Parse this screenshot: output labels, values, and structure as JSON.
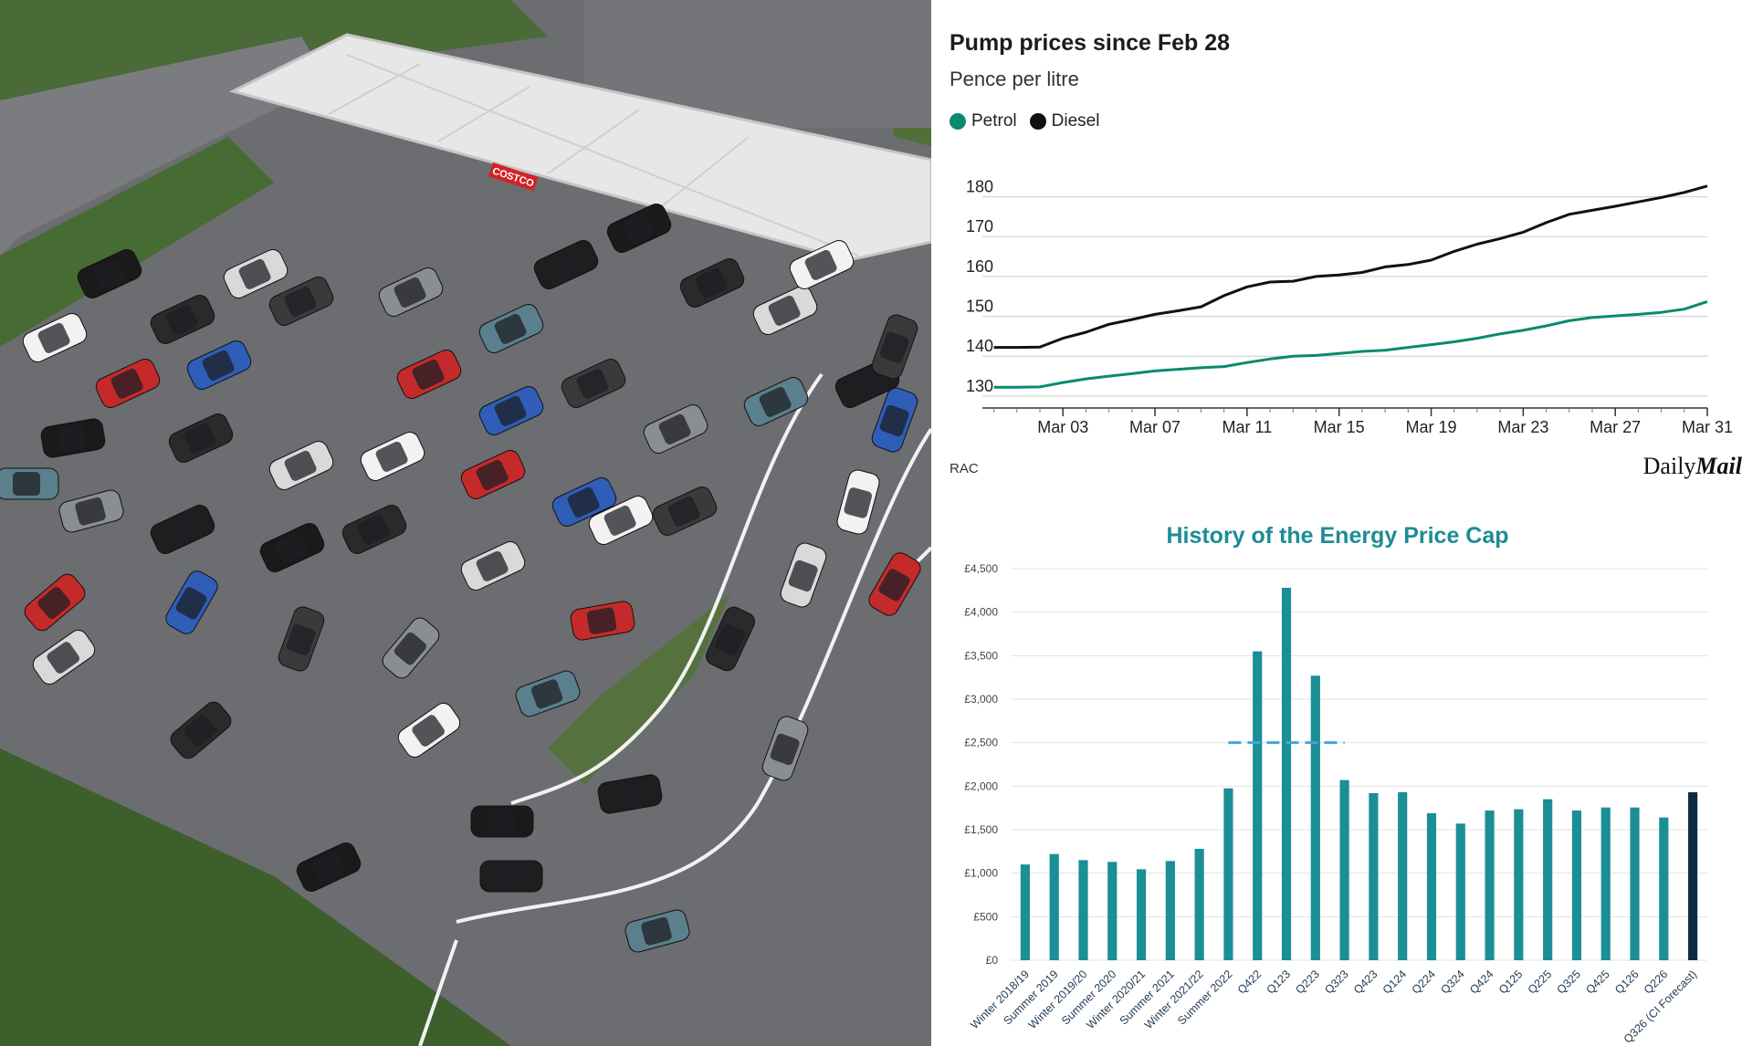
{
  "photo": {
    "alt_label": "Aerial view of queue at petrol station",
    "sign_text": "COSTCO",
    "colors": {
      "tarmac": "#6d6f72",
      "grass": "#3f6b2e",
      "canopy": "#e6e6e6",
      "canopy_edge": "#c9c9c9",
      "sign_red": "#d32226"
    }
  },
  "pump_prices": {
    "title": "Pump prices since Feb 28",
    "subtitle": "Pence per litre",
    "source": "RAC",
    "logo_prefix": "Daily",
    "logo_suffix": "Mail",
    "legend": [
      {
        "name": "Petrol",
        "color": "#0a8a6e"
      },
      {
        "name": "Diesel",
        "color": "#111111"
      }
    ]
  },
  "energy_cap": {
    "title": "History of the Energy Price Cap",
    "title_color": "#1d8c95",
    "bar_color": "#1b8e96",
    "highlight_color": "#0d2b45",
    "dash_color": "#4aa3d8"
  },
  "chart_data": [
    {
      "type": "line",
      "title": "Pump prices since Feb 28",
      "ylabel": "Pence per litre",
      "ylim": [
        127,
        187
      ],
      "yticks": [
        130,
        140,
        150,
        160,
        170,
        180
      ],
      "x_tick_labels": [
        "Mar 03",
        "Mar 07",
        "Mar 11",
        "Mar 15",
        "Mar 19",
        "Mar 23",
        "Mar 27",
        "Mar 31"
      ],
      "x_tick_days": [
        3,
        7,
        11,
        15,
        19,
        23,
        27,
        31
      ],
      "x_start_day": 28,
      "xlim_days": [
        -0.5,
        31
      ],
      "x_day_offset_label": "Feb 28 = day 0",
      "grid": true,
      "legend_position": "top-left",
      "series": [
        {
          "name": "Petrol",
          "color": "#0a8a6e",
          "x": [
            0,
            1,
            2,
            3,
            4,
            5,
            6,
            7,
            8,
            9,
            10,
            11,
            12,
            13,
            14,
            15,
            16,
            17,
            18,
            19,
            20,
            21,
            22,
            23,
            24,
            25,
            26,
            27,
            28,
            29,
            30,
            31
          ],
          "values": [
            132.2,
            132.2,
            132.3,
            133.4,
            134.3,
            135.0,
            135.6,
            136.3,
            136.7,
            137.1,
            137.4,
            138.4,
            139.3,
            140.0,
            140.2,
            140.7,
            141.2,
            141.5,
            142.2,
            142.9,
            143.6,
            144.5,
            145.6,
            146.5,
            147.6,
            148.9,
            149.7,
            150.1,
            150.5,
            151.0,
            151.8,
            153.7
          ]
        },
        {
          "name": "Diesel",
          "color": "#111111",
          "x": [
            0,
            1,
            2,
            3,
            4,
            5,
            6,
            7,
            8,
            9,
            10,
            11,
            12,
            13,
            14,
            15,
            16,
            17,
            18,
            19,
            20,
            21,
            22,
            23,
            24,
            25,
            26,
            27,
            28,
            29,
            30,
            31
          ],
          "values": [
            142.2,
            142.2,
            142.3,
            144.5,
            146.0,
            148.0,
            149.2,
            150.5,
            151.4,
            152.4,
            155.2,
            157.4,
            158.6,
            158.8,
            160.0,
            160.4,
            161.0,
            162.4,
            163.0,
            164.1,
            166.3,
            168.1,
            169.5,
            171.1,
            173.5,
            175.6,
            176.6,
            177.6,
            178.7,
            179.8,
            181.1,
            182.7
          ]
        }
      ]
    },
    {
      "type": "bar",
      "title": "History of the Energy Price Cap",
      "xlabel": "",
      "ylabel": "",
      "ylim": [
        0,
        4500
      ],
      "yticks": [
        0,
        500,
        1000,
        1500,
        2000,
        2500,
        3000,
        3500,
        4000,
        4500
      ],
      "ytick_labels": [
        "£0",
        "£500",
        "£1,000",
        "£1,500",
        "£2,000",
        "£2,500",
        "£3,000",
        "£3,500",
        "£4,000",
        "£4,500"
      ],
      "grid": true,
      "categories": [
        "Winter 2018/19",
        "Summer 2019",
        "Winter 2019/20",
        "Summer 2020",
        "Winter 2020/21",
        "Summer 2021",
        "Winter 2021/22",
        "Summer 2022",
        "Q422",
        "Q123",
        "Q223",
        "Q323",
        "Q423",
        "Q124",
        "Q224",
        "Q324",
        "Q424",
        "Q125",
        "Q225",
        "Q325",
        "Q425",
        "Q126",
        "Q226",
        "Q326 (CI Forecast)"
      ],
      "values": [
        1100,
        1220,
        1150,
        1130,
        1045,
        1140,
        1280,
        1975,
        3550,
        4280,
        3270,
        2070,
        1920,
        1930,
        1690,
        1570,
        1720,
        1735,
        1850,
        1720,
        1755,
        1755,
        1640,
        1930
      ],
      "highlight_index": 23,
      "reference_line": {
        "value": 2500,
        "from_index": 7,
        "to_index": 11,
        "style": "dashed"
      }
    }
  ]
}
